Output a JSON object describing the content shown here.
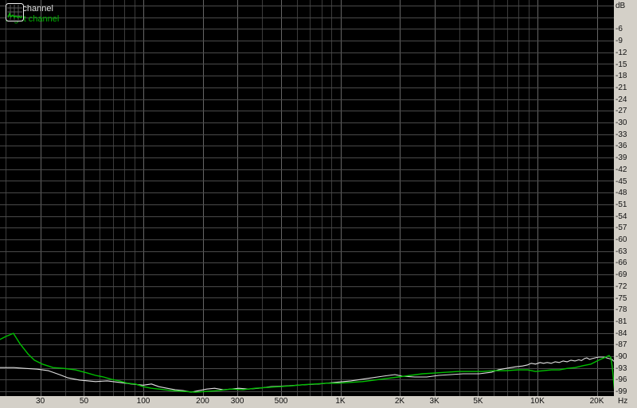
{
  "legend": {
    "items": [
      {
        "label": "Left channel",
        "color": "#e2e2e2"
      },
      {
        "label": "Right channel",
        "color": "#00b400"
      }
    ]
  },
  "axes": {
    "db_unit_label": "dB",
    "freq_unit_label": "Hz",
    "db_grid_min": -99,
    "db_grid_step": 3,
    "db_ticks": [
      {
        "v": 0,
        "t": "dB"
      },
      {
        "v": -6,
        "t": "-6"
      },
      {
        "v": -9,
        "t": "-9"
      },
      {
        "v": -12,
        "t": "-12"
      },
      {
        "v": -15,
        "t": "-15"
      },
      {
        "v": -18,
        "t": "-18"
      },
      {
        "v": -21,
        "t": "-21"
      },
      {
        "v": -24,
        "t": "-24"
      },
      {
        "v": -27,
        "t": "-27"
      },
      {
        "v": -30,
        "t": "-30"
      },
      {
        "v": -33,
        "t": "-33"
      },
      {
        "v": -36,
        "t": "-36"
      },
      {
        "v": -39,
        "t": "-39"
      },
      {
        "v": -42,
        "t": "-42"
      },
      {
        "v": -45,
        "t": "-45"
      },
      {
        "v": -48,
        "t": "-48"
      },
      {
        "v": -51,
        "t": "-51"
      },
      {
        "v": -54,
        "t": "-54"
      },
      {
        "v": -57,
        "t": "-57"
      },
      {
        "v": -60,
        "t": "-60"
      },
      {
        "v": -63,
        "t": "-63"
      },
      {
        "v": -66,
        "t": "-66"
      },
      {
        "v": -69,
        "t": "-69"
      },
      {
        "v": -72,
        "t": "-72"
      },
      {
        "v": -75,
        "t": "-75"
      },
      {
        "v": -78,
        "t": "-78"
      },
      {
        "v": -81,
        "t": "-81"
      },
      {
        "v": -84,
        "t": "-84"
      },
      {
        "v": -87,
        "t": "-87"
      },
      {
        "v": -90,
        "t": "-90"
      },
      {
        "v": -93,
        "t": "-93"
      },
      {
        "v": -96,
        "t": "-96"
      },
      {
        "v": -99,
        "t": "-99"
      }
    ],
    "freq_ticks": [
      {
        "f": 30,
        "t": "30"
      },
      {
        "f": 50,
        "t": "50"
      },
      {
        "f": 100,
        "t": "100"
      },
      {
        "f": 200,
        "t": "200"
      },
      {
        "f": 300,
        "t": "300"
      },
      {
        "f": 500,
        "t": "500"
      },
      {
        "f": 1000,
        "t": "1K"
      },
      {
        "f": 2000,
        "t": "2K"
      },
      {
        "f": 3000,
        "t": "3K"
      },
      {
        "f": 5000,
        "t": "5K"
      },
      {
        "f": 10000,
        "t": "10K"
      },
      {
        "f": 20000,
        "t": "20K"
      }
    ],
    "freq_gridlines": [
      20,
      30,
      40,
      50,
      60,
      70,
      80,
      90,
      100,
      200,
      300,
      400,
      500,
      600,
      700,
      800,
      900,
      1000,
      2000,
      3000,
      4000,
      5000,
      6000,
      7000,
      8000,
      9000,
      10000,
      20000
    ]
  },
  "colors": {
    "plot_bg": "#000000",
    "grid_minor": "#3c3c3c",
    "grid_major": "#656565",
    "grid_db": "#4a4a4a",
    "panel": "#d4d0c8",
    "panel_text": "#111111",
    "left_trace": "#e2e2e2",
    "right_trace": "#00c000"
  },
  "chart_data": {
    "type": "line",
    "x_scale": "log",
    "xlabel": "Hz",
    "ylabel": "dB",
    "x_range_hz": [
      18.7,
      24200
    ],
    "y_range_db": [
      -100,
      1.4
    ],
    "grid": true,
    "legend_position": "top-left",
    "series": [
      {
        "name": "Left channel",
        "color": "#e2e2e2",
        "points": [
          [
            18.7,
            -92.9
          ],
          [
            22,
            -92.9
          ],
          [
            25,
            -93.1
          ],
          [
            29,
            -93.3
          ],
          [
            33,
            -93.7
          ],
          [
            37.5,
            -94.7
          ],
          [
            41.2,
            -95.5
          ],
          [
            47.5,
            -96.1
          ],
          [
            57.2,
            -96.5
          ],
          [
            65.6,
            -96.3
          ],
          [
            75.5,
            -96.7
          ],
          [
            86.9,
            -97.1
          ],
          [
            100,
            -97.4
          ],
          [
            110,
            -97.1
          ],
          [
            120,
            -97.8
          ],
          [
            132,
            -98.2
          ],
          [
            145,
            -98.6
          ],
          [
            159,
            -98.8
          ],
          [
            175,
            -99.2
          ],
          [
            192,
            -98.8
          ],
          [
            210,
            -98.4
          ],
          [
            230,
            -98.2
          ],
          [
            254,
            -98.6
          ],
          [
            280,
            -98.4
          ],
          [
            305,
            -98.2
          ],
          [
            340,
            -98.4
          ],
          [
            385,
            -98.2
          ],
          [
            443,
            -97.8
          ],
          [
            535,
            -97.6
          ],
          [
            645,
            -97.3
          ],
          [
            777,
            -97.1
          ],
          [
            937,
            -96.7
          ],
          [
            1131,
            -96.3
          ],
          [
            1364,
            -95.7
          ],
          [
            1645,
            -95.1
          ],
          [
            1891,
            -94.7
          ],
          [
            2066,
            -95.1
          ],
          [
            2380,
            -95.3
          ],
          [
            2742,
            -95.3
          ],
          [
            3159,
            -94.9
          ],
          [
            3640,
            -94.7
          ],
          [
            4194,
            -94.5
          ],
          [
            5059,
            -94.5
          ],
          [
            5830,
            -94.1
          ],
          [
            6300,
            -93.5
          ],
          [
            6933,
            -93.1
          ],
          [
            7740,
            -92.7
          ],
          [
            8400,
            -92.5
          ],
          [
            8918,
            -92.2
          ],
          [
            9300,
            -91.8
          ],
          [
            9782,
            -92.0
          ],
          [
            10300,
            -91.6
          ],
          [
            10730,
            -91.8
          ],
          [
            11200,
            -91.6
          ],
          [
            11770,
            -91.8
          ],
          [
            12300,
            -91.4
          ],
          [
            12910,
            -91.6
          ],
          [
            13500,
            -91.2
          ],
          [
            14160,
            -91.4
          ],
          [
            14800,
            -91.0
          ],
          [
            15530,
            -91.2
          ],
          [
            16200,
            -90.9
          ],
          [
            16710,
            -91.1
          ],
          [
            17300,
            -90.6
          ],
          [
            17790,
            -90.4
          ],
          [
            18400,
            -90.8
          ],
          [
            18940,
            -90.6
          ],
          [
            19600,
            -90.4
          ],
          [
            20440,
            -90.2
          ],
          [
            21750,
            -90.2
          ],
          [
            23080,
            -90.6
          ],
          [
            23900,
            -90.8
          ],
          [
            24400,
            -91.3
          ]
        ]
      },
      {
        "name": "Right channel",
        "color": "#00c000",
        "points": [
          [
            18.7,
            -85.7
          ],
          [
            20.1,
            -84.9
          ],
          [
            21.9,
            -84.1
          ],
          [
            23.6,
            -86.7
          ],
          [
            26,
            -89.4
          ],
          [
            28,
            -91.0
          ],
          [
            30.7,
            -92.0
          ],
          [
            34.9,
            -92.9
          ],
          [
            39.5,
            -93.1
          ],
          [
            45.3,
            -93.5
          ],
          [
            52.1,
            -94.3
          ],
          [
            57.2,
            -94.9
          ],
          [
            62.8,
            -95.3
          ],
          [
            68.9,
            -95.9
          ],
          [
            75.5,
            -96.3
          ],
          [
            82.9,
            -96.9
          ],
          [
            91,
            -97.1
          ],
          [
            100,
            -97.8
          ],
          [
            110,
            -98.2
          ],
          [
            120,
            -98.4
          ],
          [
            139,
            -98.8
          ],
          [
            159,
            -99.0
          ],
          [
            183,
            -99.2
          ],
          [
            211,
            -99.0
          ],
          [
            242,
            -98.8
          ],
          [
            278,
            -98.4
          ],
          [
            320,
            -98.6
          ],
          [
            368,
            -98.2
          ],
          [
            423,
            -98.0
          ],
          [
            486,
            -97.8
          ],
          [
            559,
            -97.6
          ],
          [
            643,
            -97.3
          ],
          [
            740,
            -97.1
          ],
          [
            851,
            -96.9
          ],
          [
            978,
            -96.9
          ],
          [
            1125,
            -96.7
          ],
          [
            1294,
            -96.5
          ],
          [
            1488,
            -96.1
          ],
          [
            1712,
            -95.7
          ],
          [
            1968,
            -95.3
          ],
          [
            2264,
            -94.9
          ],
          [
            2604,
            -94.5
          ],
          [
            2995,
            -94.3
          ],
          [
            3444,
            -94.1
          ],
          [
            3962,
            -93.9
          ],
          [
            4557,
            -93.9
          ],
          [
            5241,
            -93.9
          ],
          [
            6028,
            -93.7
          ],
          [
            6933,
            -93.7
          ],
          [
            7974,
            -93.5
          ],
          [
            8918,
            -93.5
          ],
          [
            9782,
            -93.9
          ],
          [
            10730,
            -93.7
          ],
          [
            11770,
            -93.5
          ],
          [
            12910,
            -93.5
          ],
          [
            14160,
            -93.1
          ],
          [
            15530,
            -92.9
          ],
          [
            17030,
            -92.4
          ],
          [
            18680,
            -92.0
          ],
          [
            20440,
            -91.0
          ],
          [
            21750,
            -90.4
          ],
          [
            22600,
            -90.0
          ],
          [
            23100,
            -89.8
          ],
          [
            23600,
            -90.4
          ],
          [
            23900,
            -92.4
          ],
          [
            24150,
            -94.5
          ],
          [
            24400,
            -97.1
          ],
          [
            24650,
            -99.3
          ]
        ]
      }
    ]
  }
}
